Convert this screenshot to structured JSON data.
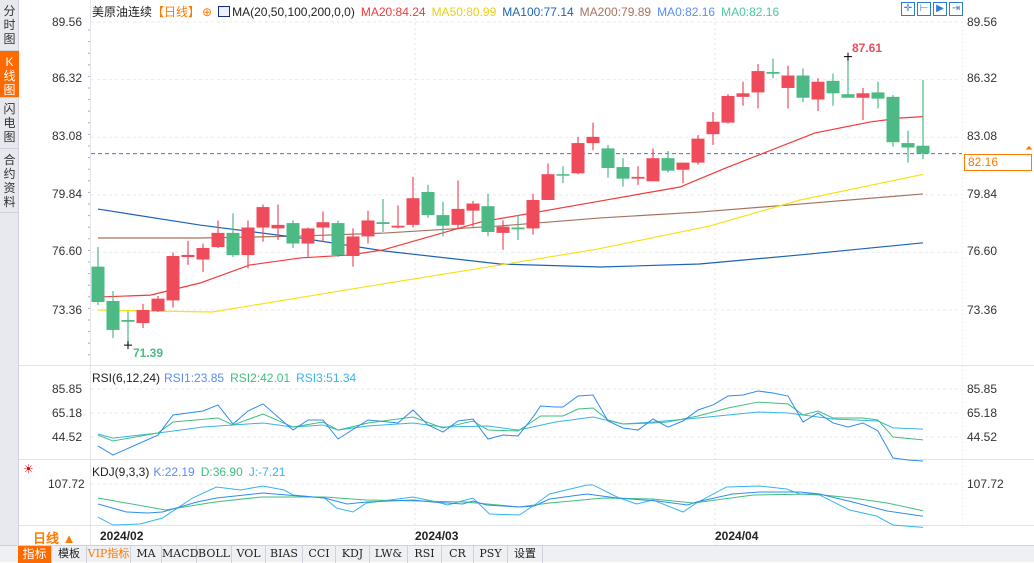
{
  "sidebar": {
    "tabs": [
      {
        "label": "分时图"
      },
      {
        "label": "K线图",
        "active": true
      },
      {
        "label": "闪电图"
      },
      {
        "label": "合约资料"
      }
    ]
  },
  "header": {
    "symbol": "美原油连续",
    "period": "【日线】",
    "ma_label": "MA(20,50,100,200,0,0)",
    "ma20": "MA20:84.24",
    "ma50": "MA50:80.99",
    "ma100": "MA100:77.14",
    "ma200": "MA200:79.89",
    "ma0a": "MA0:82.16",
    "ma0b": "MA0:82.16"
  },
  "toolbar_icons": [
    "crosshair-icon",
    "zoom-range-icon",
    "play-range-icon",
    "exit-icon"
  ],
  "colors": {
    "up": "#ef4b5b",
    "down": "#4db984",
    "ma20": "#f23a3a",
    "ma50": "#f7e21a",
    "ma100": "#1b63b6",
    "ma200": "#a6735f",
    "rsi1": "#2f8cf0",
    "rsi2": "#3fbf7f",
    "rsi3": "#36b4ee",
    "k": "#2f8cf0",
    "d": "#3fbf7f",
    "j": "#36b4ee",
    "accent": "#ff6a00"
  },
  "price_axis": {
    "ticks": [
      "89.56",
      "86.32",
      "83.08",
      "79.84",
      "76.60",
      "73.36"
    ],
    "current": "82.16",
    "high_label": "87.61",
    "low_label": "71.39"
  },
  "rsi": {
    "label": "RSI(6,12,24)",
    "rsi1": "RSI1:23.85",
    "rsi2": "RSI2:42.01",
    "rsi3": "RSI3:51.34",
    "ticks": [
      "85.85",
      "65.18",
      "44.52"
    ]
  },
  "kdj": {
    "label": "KDJ(9,3,3)",
    "k": "K:22.19",
    "d": "D:36.90",
    "j": "J:-7.21",
    "ticks": [
      "107.72"
    ]
  },
  "date_axis": {
    "period_label": "日线 ▲",
    "labels": [
      "2024/02",
      "2024/03",
      "2024/04"
    ]
  },
  "bottom_tabs": [
    "指标",
    "模板",
    "VIP指标",
    "MA",
    "MACD",
    "BOLL",
    "VOL",
    "BIAS",
    "CCI",
    "KDJ",
    "LW&",
    "RSI",
    "CR",
    "PSY",
    "设置"
  ],
  "chart_data": {
    "type": "candlestick",
    "title": "美原油连续 日线",
    "candles": [
      [
        75.8,
        76.9,
        73.64,
        73.81
      ],
      [
        73.87,
        74.43,
        71.79,
        72.24
      ],
      [
        72.8,
        73.3,
        71.39,
        72.7
      ],
      [
        72.63,
        73.7,
        72.35,
        73.36
      ],
      [
        73.3,
        74.15,
        73.25,
        74.0
      ],
      [
        73.9,
        76.6,
        73.5,
        76.4
      ],
      [
        76.34,
        77.25,
        75.9,
        76.46
      ],
      [
        76.2,
        77.1,
        75.5,
        76.85
      ],
      [
        76.9,
        78.4,
        76.85,
        77.7
      ],
      [
        77.7,
        78.8,
        76.35,
        76.45
      ],
      [
        76.45,
        78.4,
        75.7,
        78.0
      ],
      [
        78.0,
        79.3,
        77.2,
        79.15
      ],
      [
        77.95,
        79.3,
        77.3,
        78.15
      ],
      [
        78.25,
        78.4,
        76.85,
        77.1
      ],
      [
        77.1,
        78.0,
        76.35,
        77.95
      ],
      [
        78.0,
        78.9,
        77.2,
        78.3
      ],
      [
        78.25,
        78.4,
        76.35,
        76.45
      ],
      [
        76.4,
        77.95,
        75.8,
        77.5
      ],
      [
        77.5,
        78.95,
        77.1,
        78.4
      ],
      [
        78.3,
        79.6,
        77.75,
        78.2
      ],
      [
        78.0,
        79.25,
        77.95,
        78.1
      ],
      [
        78.15,
        80.85,
        78.0,
        79.65
      ],
      [
        80.0,
        80.4,
        78.55,
        78.7
      ],
      [
        78.7,
        79.45,
        77.5,
        78.1
      ],
      [
        78.15,
        80.65,
        77.9,
        79.05
      ],
      [
        78.95,
        79.5,
        78.05,
        79.35
      ],
      [
        79.2,
        79.9,
        77.5,
        77.75
      ],
      [
        77.7,
        78.4,
        76.75,
        78.05
      ],
      [
        78.0,
        78.7,
        77.3,
        77.9
      ],
      [
        77.95,
        79.9,
        77.6,
        79.55
      ],
      [
        79.55,
        81.6,
        79.55,
        81.0
      ],
      [
        81.0,
        81.45,
        80.5,
        80.95
      ],
      [
        81.05,
        83.1,
        81.0,
        82.75
      ],
      [
        82.75,
        83.9,
        82.35,
        83.1
      ],
      [
        82.45,
        82.65,
        80.8,
        81.35
      ],
      [
        81.4,
        81.9,
        80.3,
        80.75
      ],
      [
        80.75,
        81.45,
        80.4,
        80.85
      ],
      [
        80.6,
        82.45,
        80.6,
        81.9
      ],
      [
        81.9,
        82.3,
        81.1,
        81.2
      ],
      [
        81.25,
        81.65,
        80.5,
        81.65
      ],
      [
        81.65,
        83.2,
        81.55,
        83.0
      ],
      [
        83.25,
        84.5,
        82.65,
        83.95
      ],
      [
        83.9,
        85.5,
        83.85,
        85.4
      ],
      [
        85.35,
        86.2,
        84.85,
        85.55
      ],
      [
        85.6,
        87.2,
        84.7,
        86.8
      ],
      [
        86.75,
        87.5,
        86.4,
        86.65
      ],
      [
        85.85,
        87.1,
        84.7,
        86.55
      ],
      [
        86.55,
        86.95,
        85.05,
        85.3
      ],
      [
        85.2,
        86.4,
        84.55,
        86.2
      ],
      [
        86.25,
        86.65,
        84.85,
        85.55
      ],
      [
        85.5,
        87.61,
        85.3,
        85.3
      ],
      [
        85.3,
        85.85,
        84.05,
        85.55
      ],
      [
        85.6,
        86.2,
        84.7,
        85.25
      ],
      [
        85.35,
        85.45,
        82.55,
        82.8
      ],
      [
        82.75,
        83.45,
        81.65,
        82.5
      ],
      [
        82.6,
        86.3,
        81.85,
        82.16
      ]
    ],
    "candle_format": [
      "open",
      "high",
      "low",
      "close"
    ],
    "ma": {
      "ma20": [
        [
          0,
          74.09
        ],
        [
          3.5,
          74.2
        ],
        [
          6.8,
          74.88
        ],
        [
          10.1,
          75.89
        ],
        [
          13.5,
          76.29
        ],
        [
          16.8,
          76.46
        ],
        [
          19,
          76.74
        ],
        [
          25.5,
          78.31
        ],
        [
          32,
          79.27
        ],
        [
          38.8,
          80.28
        ],
        [
          42,
          81.4
        ],
        [
          47.8,
          83.32
        ],
        [
          51.5,
          83.94
        ],
        [
          53.5,
          84.16
        ],
        [
          55,
          84.24
        ]
      ],
      "ma50": [
        [
          0,
          73.36
        ],
        [
          7.6,
          73.25
        ],
        [
          19,
          74.83
        ],
        [
          26.8,
          75.89
        ],
        [
          33.3,
          76.79
        ],
        [
          40.8,
          78.09
        ],
        [
          46.8,
          79.55
        ],
        [
          55,
          80.99
        ]
      ],
      "ma100": [
        [
          0,
          79.04
        ],
        [
          6.8,
          78.14
        ],
        [
          13.5,
          77.41
        ],
        [
          19.1,
          76.68
        ],
        [
          26.8,
          75.95
        ],
        [
          33.5,
          75.78
        ],
        [
          40.1,
          75.95
        ],
        [
          46.8,
          76.46
        ],
        [
          55,
          77.14
        ]
      ],
      "ma200": [
        [
          0,
          77.41
        ],
        [
          6.8,
          77.41
        ],
        [
          13.5,
          77.52
        ],
        [
          19.1,
          77.69
        ],
        [
          26.8,
          78.09
        ],
        [
          33.5,
          78.54
        ],
        [
          40.1,
          78.87
        ],
        [
          46.8,
          79.32
        ],
        [
          55,
          79.89
        ]
      ]
    },
    "rsi": {
      "rsi1": [
        [
          0,
          36.8
        ],
        [
          1,
          29.0
        ],
        [
          4,
          46.2
        ],
        [
          5,
          63.5
        ],
        [
          7,
          66.9
        ],
        [
          8,
          72.1
        ],
        [
          9,
          55.7
        ],
        [
          10,
          66.9
        ],
        [
          11,
          73.0
        ],
        [
          13,
          50.5
        ],
        [
          14,
          59.2
        ],
        [
          15,
          59.2
        ],
        [
          16,
          42.8
        ],
        [
          18,
          59.2
        ],
        [
          20,
          56.6
        ],
        [
          21,
          67.8
        ],
        [
          22,
          54.9
        ],
        [
          23,
          48.8
        ],
        [
          24,
          58.3
        ],
        [
          25,
          60.0
        ],
        [
          26,
          42.8
        ],
        [
          27,
          46.2
        ],
        [
          28,
          45.4
        ],
        [
          29,
          61.7
        ],
        [
          29.5,
          71.2
        ],
        [
          30.5,
          70.3
        ],
        [
          31,
          70.3
        ],
        [
          32,
          79.8
        ],
        [
          33,
          80.7
        ],
        [
          34,
          58.3
        ],
        [
          35,
          52.3
        ],
        [
          36,
          50.5
        ],
        [
          37,
          60.0
        ],
        [
          38,
          53.1
        ],
        [
          39,
          58.3
        ],
        [
          40,
          67.8
        ],
        [
          41,
          72.1
        ],
        [
          42,
          79.8
        ],
        [
          43,
          80.7
        ],
        [
          44,
          84.1
        ],
        [
          45,
          82.4
        ],
        [
          46,
          79.8
        ],
        [
          47,
          57.4
        ],
        [
          48,
          65.2
        ],
        [
          49,
          56.6
        ],
        [
          50,
          53.1
        ],
        [
          51,
          56.6
        ],
        [
          52,
          49.7
        ],
        [
          53,
          26.4
        ],
        [
          54,
          24.7
        ],
        [
          55,
          23.85
        ]
      ],
      "rsi2": [
        [
          0,
          46.2
        ],
        [
          1,
          41.1
        ],
        [
          4,
          48.0
        ],
        [
          5,
          57.4
        ],
        [
          8,
          60.9
        ],
        [
          9,
          54.9
        ],
        [
          11,
          64.3
        ],
        [
          13,
          53.1
        ],
        [
          15,
          57.4
        ],
        [
          16,
          50.5
        ],
        [
          18,
          56.6
        ],
        [
          21,
          61.7
        ],
        [
          23,
          52.3
        ],
        [
          25,
          58.3
        ],
        [
          26,
          50.5
        ],
        [
          28,
          49.7
        ],
        [
          29.5,
          62.6
        ],
        [
          31,
          62.6
        ],
        [
          32,
          68.6
        ],
        [
          33,
          69.5
        ],
        [
          34,
          59.2
        ],
        [
          35,
          55.7
        ],
        [
          37,
          56.6
        ],
        [
          38,
          57.4
        ],
        [
          40,
          62.6
        ],
        [
          42,
          69.5
        ],
        [
          44,
          74.6
        ],
        [
          46,
          73.0
        ],
        [
          47,
          63.5
        ],
        [
          48,
          66.9
        ],
        [
          49,
          60.9
        ],
        [
          51,
          60.9
        ],
        [
          52,
          59.2
        ],
        [
          53,
          44.5
        ],
        [
          55,
          42.01
        ]
      ],
      "rsi3": [
        [
          0,
          47.1
        ],
        [
          1,
          43.6
        ],
        [
          4,
          48.0
        ],
        [
          7,
          53.1
        ],
        [
          11,
          56.6
        ],
        [
          13,
          53.1
        ],
        [
          15,
          54.9
        ],
        [
          16,
          50.5
        ],
        [
          18,
          54.0
        ],
        [
          21,
          56.6
        ],
        [
          23,
          53.1
        ],
        [
          26,
          54.0
        ],
        [
          28,
          50.5
        ],
        [
          30.5,
          57.4
        ],
        [
          33,
          61.7
        ],
        [
          35,
          55.7
        ],
        [
          37,
          57.4
        ],
        [
          40,
          60.9
        ],
        [
          44,
          66.0
        ],
        [
          46,
          65.2
        ],
        [
          49,
          60.0
        ],
        [
          52,
          58.3
        ],
        [
          53,
          52.4
        ],
        [
          55,
          51.34
        ]
      ]
    },
    "kdj": {
      "k": [
        [
          0,
          54.7
        ],
        [
          1.9,
          33.5
        ],
        [
          3.3,
          30.8
        ],
        [
          4.3,
          33.5
        ],
        [
          6.6,
          60.0
        ],
        [
          7.9,
          70.6
        ],
        [
          11,
          83.9
        ],
        [
          12.6,
          78.6
        ],
        [
          15.1,
          70.6
        ],
        [
          16.6,
          54.7
        ],
        [
          17.9,
          60.0
        ],
        [
          21,
          65.3
        ],
        [
          22.3,
          60.0
        ],
        [
          24.3,
          54.7
        ],
        [
          25,
          62.7
        ],
        [
          25.9,
          52.1
        ],
        [
          28.1,
          46.8
        ],
        [
          29.1,
          49.4
        ],
        [
          30.1,
          67.9
        ],
        [
          32.6,
          81.2
        ],
        [
          34.6,
          70.6
        ],
        [
          37.3,
          62.7
        ],
        [
          39.3,
          52.1
        ],
        [
          39.9,
          60.0
        ],
        [
          42.3,
          81.2
        ],
        [
          44.1,
          86.5
        ],
        [
          46.8,
          86.5
        ],
        [
          48.1,
          81.2
        ],
        [
          50.3,
          60.0
        ],
        [
          52.6,
          36.2
        ],
        [
          55,
          22.19
        ]
      ],
      "d": [
        [
          0,
          70.6
        ],
        [
          4.5,
          38.8
        ],
        [
          7.8,
          60.0
        ],
        [
          10.9,
          73.3
        ],
        [
          15.1,
          73.3
        ],
        [
          17.9,
          65.3
        ],
        [
          21.3,
          62.7
        ],
        [
          24.5,
          60.0
        ],
        [
          28.1,
          46.8
        ],
        [
          30.1,
          57.4
        ],
        [
          33.7,
          70.6
        ],
        [
          37,
          68.0
        ],
        [
          39.7,
          57.4
        ],
        [
          43.7,
          78.6
        ],
        [
          47.7,
          81.2
        ],
        [
          50.3,
          70.6
        ],
        [
          52.6,
          57.4
        ],
        [
          55,
          36.9
        ]
      ],
      "j": [
        [
          0,
          19.9
        ],
        [
          1,
          -1
        ],
        [
          2.8,
          1.6
        ],
        [
          4.3,
          17.6
        ],
        [
          6.3,
          70.6
        ],
        [
          7.9,
          99.8
        ],
        [
          9.5,
          91.8
        ],
        [
          11,
          102.4
        ],
        [
          12.4,
          91.8
        ],
        [
          13,
          78.6
        ],
        [
          15.1,
          70.6
        ],
        [
          15.9,
          44.1
        ],
        [
          17,
          33.5
        ],
        [
          17.9,
          57.4
        ],
        [
          21,
          73.3
        ],
        [
          22.6,
          60.0
        ],
        [
          23.3,
          52.1
        ],
        [
          25,
          70.6
        ],
        [
          26.1,
          28.2
        ],
        [
          28.1,
          25.5
        ],
        [
          29.1,
          52.1
        ],
        [
          30.1,
          81.2
        ],
        [
          32.6,
          105.1
        ],
        [
          33,
          105.1
        ],
        [
          34.6,
          73.3
        ],
        [
          35.9,
          54.7
        ],
        [
          37,
          65.3
        ],
        [
          39,
          33.5
        ],
        [
          39.9,
          57.4
        ],
        [
          41.9,
          99.8
        ],
        [
          44.1,
          102.4
        ],
        [
          45.9,
          94.5
        ],
        [
          46.8,
          81.2
        ],
        [
          48.1,
          78.6
        ],
        [
          50.1,
          38.8
        ],
        [
          51.9,
          22.9
        ],
        [
          53,
          -1
        ],
        [
          55,
          -7.21
        ]
      ]
    },
    "ylim_price": [
      71.0,
      89.8
    ],
    "x_month_starts": {
      "2024/03": 21,
      "2024/04": 41
    },
    "grid": true
  }
}
